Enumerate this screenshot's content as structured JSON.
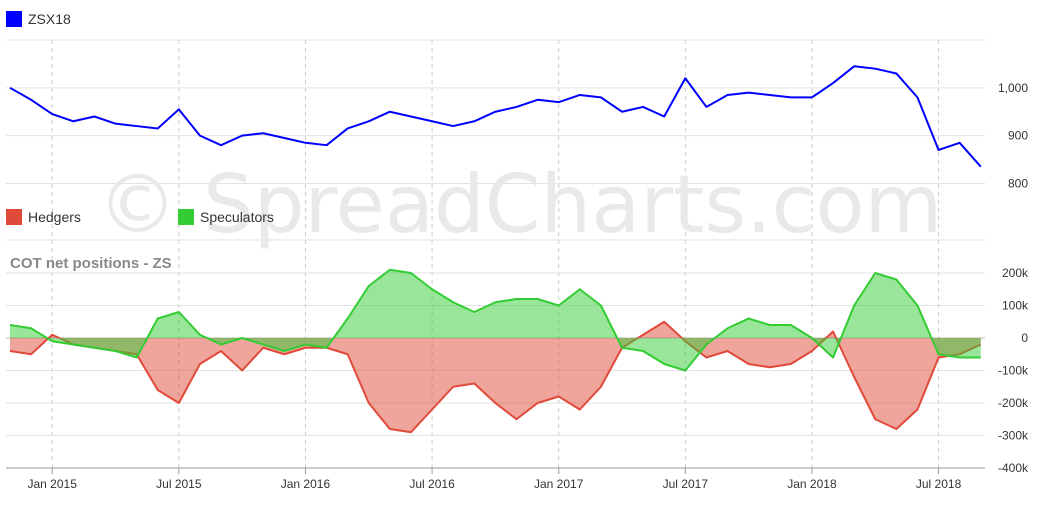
{
  "watermark": "© SpreadCharts.com",
  "chart_data": [
    {
      "type": "line",
      "series": [
        {
          "name": "ZSX18",
          "color": "#0000ff"
        }
      ],
      "y_ticks": [
        800,
        900,
        "1,000"
      ],
      "ylim": [
        780,
        1100
      ],
      "grid": true,
      "x": [
        "2014-11",
        "2014-12",
        "2015-01",
        "2015-02",
        "2015-03",
        "2015-04",
        "2015-05",
        "2015-06",
        "2015-07",
        "2015-08",
        "2015-09",
        "2015-10",
        "2015-11",
        "2015-12",
        "2016-01",
        "2016-02",
        "2016-03",
        "2016-04",
        "2016-05",
        "2016-06",
        "2016-07",
        "2016-08",
        "2016-09",
        "2016-10",
        "2016-11",
        "2016-12",
        "2017-01",
        "2017-02",
        "2017-03",
        "2017-04",
        "2017-05",
        "2017-06",
        "2017-07",
        "2017-08",
        "2017-09",
        "2017-10",
        "2017-11",
        "2017-12",
        "2018-01",
        "2018-02",
        "2018-03",
        "2018-04",
        "2018-05",
        "2018-06",
        "2018-07",
        "2018-08",
        "2018-09"
      ],
      "values": [
        1000,
        975,
        945,
        930,
        940,
        925,
        920,
        915,
        955,
        900,
        880,
        900,
        905,
        895,
        885,
        880,
        915,
        930,
        950,
        940,
        930,
        920,
        930,
        950,
        960,
        975,
        970,
        985,
        980,
        950,
        960,
        940,
        1020,
        960,
        985,
        990,
        985,
        980,
        980,
        1010,
        1045,
        1040,
        1030,
        980,
        870,
        885,
        835
      ]
    },
    {
      "type": "area",
      "title": "COT net positions - ZS",
      "series": [
        {
          "name": "Hedgers",
          "color": "#e04a3a"
        },
        {
          "name": "Speculators",
          "color": "#33cc33"
        }
      ],
      "y_ticks": [
        "200k",
        "100k",
        "0",
        "-100k",
        "-200k",
        "-300k",
        "-400k"
      ],
      "ylim": [
        -400000,
        200000
      ],
      "grid": true,
      "x_ticks": [
        "Jan 2015",
        "Jul 2015",
        "Jan 2016",
        "Jul 2016",
        "Jan 2017",
        "Jul 2017",
        "Jan 2018",
        "Jul 2018"
      ],
      "x": [
        "2014-11",
        "2014-12",
        "2015-01",
        "2015-02",
        "2015-03",
        "2015-04",
        "2015-05",
        "2015-06",
        "2015-07",
        "2015-08",
        "2015-09",
        "2015-10",
        "2015-11",
        "2015-12",
        "2016-01",
        "2016-02",
        "2016-03",
        "2016-04",
        "2016-05",
        "2016-06",
        "2016-07",
        "2016-08",
        "2016-09",
        "2016-10",
        "2016-11",
        "2016-12",
        "2017-01",
        "2017-02",
        "2017-03",
        "2017-04",
        "2017-05",
        "2017-06",
        "2017-07",
        "2017-08",
        "2017-09",
        "2017-10",
        "2017-11",
        "2017-12",
        "2018-01",
        "2018-02",
        "2018-03",
        "2018-04",
        "2018-05",
        "2018-06",
        "2018-07",
        "2018-08",
        "2018-09"
      ],
      "hedgers": [
        -40000,
        -50000,
        10000,
        -20000,
        -30000,
        -40000,
        -50000,
        -160000,
        -200000,
        -80000,
        -40000,
        -100000,
        -30000,
        -50000,
        -30000,
        -30000,
        -50000,
        -200000,
        -280000,
        -290000,
        -220000,
        -150000,
        -140000,
        -200000,
        -250000,
        -200000,
        -180000,
        -220000,
        -150000,
        -30000,
        10000,
        50000,
        -10000,
        -60000,
        -40000,
        -80000,
        -90000,
        -80000,
        -40000,
        20000,
        -120000,
        -250000,
        -280000,
        -220000,
        -60000,
        -50000,
        -20000
      ],
      "speculators": [
        40000,
        30000,
        -10000,
        -20000,
        -30000,
        -40000,
        -60000,
        60000,
        80000,
        10000,
        -20000,
        0,
        -20000,
        -40000,
        -20000,
        -30000,
        60000,
        160000,
        210000,
        200000,
        150000,
        110000,
        80000,
        110000,
        120000,
        120000,
        100000,
        150000,
        100000,
        -30000,
        -40000,
        -80000,
        -100000,
        -20000,
        30000,
        60000,
        40000,
        40000,
        0,
        -60000,
        100000,
        200000,
        180000,
        100000,
        -50000,
        -60000,
        -60000
      ]
    }
  ]
}
